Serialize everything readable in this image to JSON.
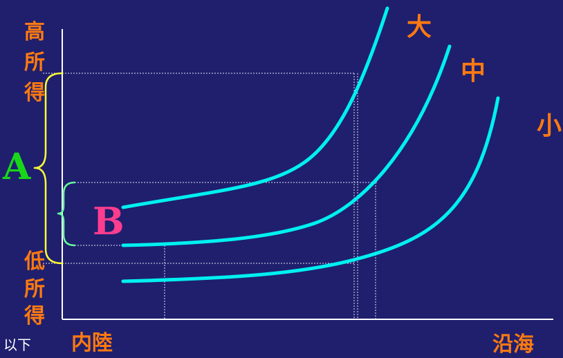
{
  "labels": {
    "high_income": "高所得",
    "low_income": "低所得",
    "inland": "内陸",
    "coastal": "沿海",
    "below": "以下",
    "large": "大",
    "medium": "中",
    "small": "小",
    "gap_a": "A",
    "gap_b": "B"
  },
  "colors": {
    "background": "#1f1f6e",
    "curve": "#00f0f0",
    "label_orange": "#ff7a10",
    "label_green": "#19d619",
    "label_pink": "#ff3d8f",
    "brace_a": "#ffff33",
    "brace_b": "#66ff99",
    "axis": "#ffffff",
    "guide": "#e6e6f0"
  }
}
